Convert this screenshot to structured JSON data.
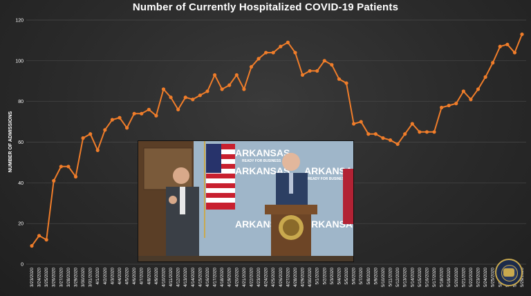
{
  "chart_data": {
    "type": "line",
    "title": "Number of Currently Hospitalized COVID-19 Patients",
    "ylabel": "NUMBER OF ADMISSIONS",
    "xlabel": "",
    "ylim": [
      0,
      120
    ],
    "yticks": [
      0,
      20,
      40,
      60,
      80,
      100,
      120
    ],
    "grid": true,
    "color": "#f07d2a",
    "x": [
      "3/23/2020",
      "3/24/2020",
      "3/25/2020",
      "3/26/2020",
      "3/27/2020",
      "3/28/2020",
      "3/29/2020",
      "3/30/2020",
      "3/31/2020",
      "4/1/2020",
      "4/2/2020",
      "4/3/2020",
      "4/4/2020",
      "4/5/2020",
      "4/6/2020",
      "4/7/2020",
      "4/8/2020",
      "4/9/2020",
      "4/10/2020",
      "4/11/2020",
      "4/12/2020",
      "4/13/2020",
      "4/14/2020",
      "4/15/2020",
      "4/16/2020",
      "4/17/2020",
      "4/18/2020",
      "4/19/2020",
      "4/20/2020",
      "4/21/2020",
      "4/22/2020",
      "4/23/2020",
      "4/24/2020",
      "4/25/2020",
      "4/26/2020",
      "4/27/2020",
      "4/28/2020",
      "4/29/2020",
      "4/30/2020",
      "5/1/2020",
      "5/2/2020",
      "5/3/2020",
      "5/4/2020",
      "5/5/2020",
      "5/6/2020",
      "5/7/2020",
      "5/8/2020",
      "5/9/2020",
      "5/10/2020",
      "5/11/2020",
      "5/12/2020",
      "5/13/2020",
      "5/14/2020",
      "5/15/2020",
      "5/16/2020",
      "5/17/2020",
      "5/18/2020",
      "5/19/2020",
      "5/20/2020",
      "5/21/2020",
      "5/22/2020",
      "5/23/2020",
      "5/24/2020",
      "5/25/2020",
      "5/26/2020",
      "5/27/2020",
      "5/28/2020",
      "5/29/2020"
    ],
    "values": [
      9,
      14,
      12,
      41,
      48,
      48,
      43,
      62,
      64,
      56,
      66,
      71,
      72,
      67,
      74,
      74,
      76,
      73,
      86,
      82,
      76,
      82,
      81,
      83,
      85,
      93,
      86,
      88,
      93,
      86,
      97,
      101,
      104,
      104,
      107,
      109,
      104,
      93,
      95,
      95,
      100,
      98,
      91,
      89,
      69,
      70,
      64,
      64,
      62,
      61,
      59,
      64,
      69,
      65,
      65,
      65,
      77,
      78,
      79,
      85,
      81,
      86,
      92,
      99,
      107,
      108,
      104,
      113
    ]
  },
  "video_inset": {
    "backdrop_word": "ARKANSAS",
    "backdrop_tagline": "READY FOR BUSINESS"
  }
}
